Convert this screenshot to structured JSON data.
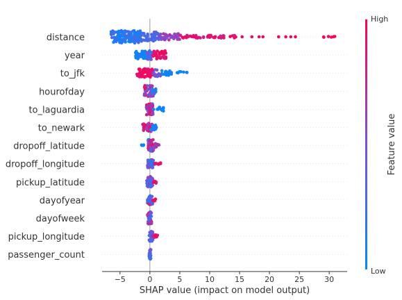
{
  "chart_data": {
    "type": "scatter",
    "variant": "shap-beeswarm-summary",
    "title": "",
    "xlabel": "SHAP value (impact on model output)",
    "ylabel": "",
    "xlim": [
      -8,
      33
    ],
    "xticks": [
      "−5",
      "0",
      "5",
      "10",
      "15",
      "20",
      "25",
      "30"
    ],
    "xtick_values": [
      -5,
      0,
      5,
      10,
      15,
      20,
      25,
      30
    ],
    "grid": false,
    "zero_line": true,
    "colorbar": {
      "label": "Feature value",
      "high": "High",
      "low": "Low",
      "low_color": "#008bfb",
      "mid_color": "#7a52d9",
      "high_color": "#ff0052"
    },
    "features": [
      {
        "name": "distance",
        "ranges": [
          {
            "from": -6.5,
            "to": -1.5,
            "low": 0.0,
            "high": 0.35,
            "n": 150,
            "spread": 0.9
          },
          {
            "from": -1.5,
            "to": 1.5,
            "low": 0.2,
            "high": 0.45,
            "n": 40,
            "spread": 0.7
          },
          {
            "from": 1.5,
            "to": 5.0,
            "low": 0.45,
            "high": 0.7,
            "n": 40,
            "spread": 0.45
          },
          {
            "from": 5.0,
            "to": 15.0,
            "low": 0.75,
            "high": 1.0,
            "n": 45,
            "spread": 0.22
          },
          {
            "from": 15.0,
            "to": 25.0,
            "low": 0.9,
            "high": 1.0,
            "n": 8,
            "spread": 0.0
          },
          {
            "from": 29.0,
            "to": 32.0,
            "low": 0.95,
            "high": 1.0,
            "n": 6,
            "spread": 0.1
          }
        ]
      },
      {
        "name": "year",
        "ranges": [
          {
            "from": -2.5,
            "to": -0.5,
            "low": 0.0,
            "high": 0.15,
            "n": 40,
            "spread": 0.55
          },
          {
            "from": -0.5,
            "to": 0.7,
            "low": 0.2,
            "high": 0.6,
            "n": 25,
            "spread": 0.7
          },
          {
            "from": 0.5,
            "to": 2.8,
            "low": 0.8,
            "high": 1.0,
            "n": 45,
            "spread": 0.6
          }
        ]
      },
      {
        "name": "to_jfk",
        "ranges": [
          {
            "from": -2.2,
            "to": 0.5,
            "low": 0.85,
            "high": 1.0,
            "n": 70,
            "spread": 0.6
          },
          {
            "from": 0.5,
            "to": 2.0,
            "low": 0.3,
            "high": 0.6,
            "n": 15,
            "spread": 0.5
          },
          {
            "from": 2.0,
            "to": 4.0,
            "low": 0.0,
            "high": 0.15,
            "n": 18,
            "spread": 0.35
          },
          {
            "from": 4.3,
            "to": 6.3,
            "low": 0.0,
            "high": 0.1,
            "n": 7,
            "spread": 0.25
          }
        ]
      },
      {
        "name": "hourofday",
        "ranges": [
          {
            "from": -1.0,
            "to": 0.6,
            "low": 0.35,
            "high": 0.95,
            "n": 50,
            "spread": 0.8
          },
          {
            "from": 0.3,
            "to": 1.0,
            "low": 0.05,
            "high": 0.45,
            "n": 15,
            "spread": 0.4
          }
        ]
      },
      {
        "name": "to_laguardia",
        "ranges": [
          {
            "from": -0.6,
            "to": 0.6,
            "low": 0.4,
            "high": 1.0,
            "n": 45,
            "spread": 0.8
          },
          {
            "from": 0.6,
            "to": 2.5,
            "low": 0.0,
            "high": 0.1,
            "n": 15,
            "spread": 0.3
          }
        ]
      },
      {
        "name": "to_newark",
        "ranges": [
          {
            "from": -1.2,
            "to": 0.5,
            "low": 0.55,
            "high": 1.0,
            "n": 40,
            "spread": 0.6
          },
          {
            "from": 0.2,
            "to": 1.2,
            "low": 0.0,
            "high": 0.2,
            "n": 15,
            "spread": 0.35
          }
        ]
      },
      {
        "name": "dropoff_latitude",
        "ranges": [
          {
            "from": -1.5,
            "to": -0.9,
            "low": 0.0,
            "high": 0.1,
            "n": 4,
            "spread": 0.1
          },
          {
            "from": -0.3,
            "to": 0.6,
            "low": 0.1,
            "high": 0.95,
            "n": 45,
            "spread": 0.85
          },
          {
            "from": 0.6,
            "to": 1.6,
            "low": 0.5,
            "high": 0.95,
            "n": 12,
            "spread": 0.3
          }
        ]
      },
      {
        "name": "dropoff_longitude",
        "ranges": [
          {
            "from": -0.4,
            "to": 0.6,
            "low": 0.0,
            "high": 0.7,
            "n": 40,
            "spread": 0.6
          },
          {
            "from": 0.6,
            "to": 1.8,
            "low": 0.75,
            "high": 1.0,
            "n": 10,
            "spread": 0.15
          }
        ]
      },
      {
        "name": "pickup_latitude",
        "ranges": [
          {
            "from": -0.6,
            "to": 0.5,
            "low": 0.1,
            "high": 0.8,
            "n": 35,
            "spread": 0.75
          },
          {
            "from": 0.5,
            "to": 1.1,
            "low": 0.7,
            "high": 1.0,
            "n": 8,
            "spread": 0.25
          }
        ]
      },
      {
        "name": "dayofyear",
        "ranges": [
          {
            "from": -0.5,
            "to": 0.5,
            "low": 0.1,
            "high": 0.8,
            "n": 30,
            "spread": 0.7
          },
          {
            "from": 0.5,
            "to": 1.0,
            "low": 0.8,
            "high": 1.0,
            "n": 6,
            "spread": 0.2
          }
        ]
      },
      {
        "name": "dayofweek",
        "ranges": [
          {
            "from": -0.4,
            "to": 0.3,
            "low": 0.2,
            "high": 0.9,
            "n": 30,
            "spread": 0.9
          }
        ]
      },
      {
        "name": "pickup_longitude",
        "ranges": [
          {
            "from": -0.2,
            "to": 0.5,
            "low": 0.1,
            "high": 0.6,
            "n": 30,
            "spread": 0.75
          },
          {
            "from": 0.4,
            "to": 1.3,
            "low": 0.75,
            "high": 1.0,
            "n": 8,
            "spread": 0.2
          }
        ]
      },
      {
        "name": "passenger_count",
        "ranges": [
          {
            "from": -0.15,
            "to": 0.2,
            "low": 0.0,
            "high": 0.6,
            "n": 25,
            "spread": 0.7
          }
        ]
      }
    ]
  }
}
